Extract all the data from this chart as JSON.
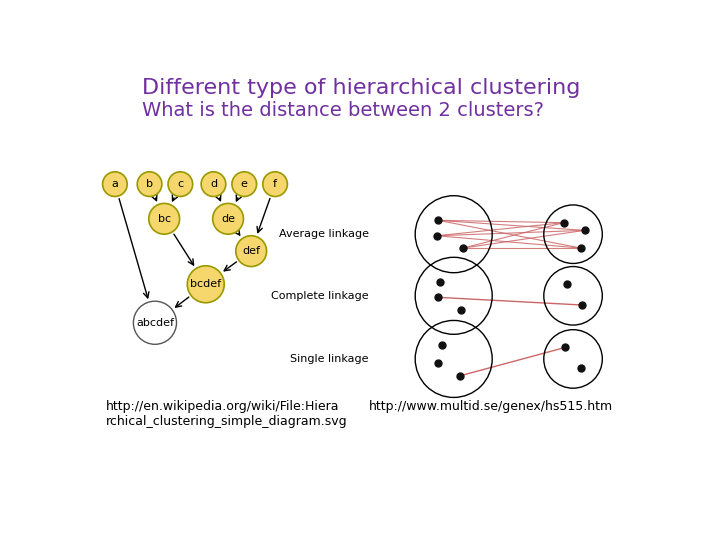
{
  "title": "Different type of hierarchical clustering",
  "subtitle": "What is the distance between 2 clusters?",
  "title_color": "#7030A0",
  "subtitle_color": "#7030A0",
  "bg_color": "#ffffff",
  "node_fill_yellow": "#F5D76E",
  "node_edge_yellow": "#999900",
  "node_fill_white": "#ffffff",
  "node_edge_white": "#555555",
  "url_left": "http://en.wikipedia.org/wiki/File:Hiera\nrchical_clustering_simple_diagram.svg",
  "url_right": "http://www.multid.se/genex/hs515.htm",
  "linkage_labels": [
    "Average linkage",
    "Complete linkage",
    "Single linkage"
  ],
  "line_color": "#CC6666",
  "dot_color": "#111111"
}
